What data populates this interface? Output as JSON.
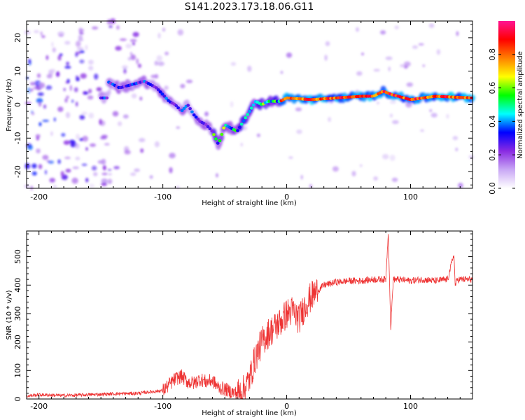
{
  "title": "S141.2023.173.18.06.G11",
  "chart_data": [
    {
      "type": "heatmap",
      "xlabel": "Height of straight line (km)",
      "ylabel": "Frequency (Hz)",
      "xlim": [
        -210,
        150
      ],
      "ylim": [
        -25,
        25
      ],
      "x_ticks": [
        -200,
        -100,
        0,
        100
      ],
      "y_ticks": [
        -20,
        -10,
        0,
        10,
        20
      ],
      "colorbar": {
        "label": "Normalized spectral amplitude",
        "range": [
          0,
          1
        ],
        "ticks": [
          0.0,
          0.2,
          0.4,
          0.6,
          0.8
        ],
        "tick_labels": [
          "0.0",
          "0.2",
          "0.4",
          "0.6",
          "0.8"
        ],
        "colormap": [
          "#ffffff",
          "#c9a8f5",
          "#8a2be2",
          "#0000ff",
          "#00ffff",
          "#00ff00",
          "#ffff00",
          "#ff8000",
          "#ff0000",
          "#ff1493"
        ]
      },
      "ridge": [
        {
          "x": -145,
          "y": 7
        },
        {
          "x": -135,
          "y": 5
        },
        {
          "x": -125,
          "y": 6
        },
        {
          "x": -115,
          "y": 7
        },
        {
          "x": -105,
          "y": 5
        },
        {
          "x": -95,
          "y": 1
        },
        {
          "x": -90,
          "y": 0
        },
        {
          "x": -85,
          "y": -2
        },
        {
          "x": -80,
          "y": 0
        },
        {
          "x": -75,
          "y": -3
        },
        {
          "x": -70,
          "y": -5
        },
        {
          "x": -65,
          "y": -6
        },
        {
          "x": -60,
          "y": -8
        },
        {
          "x": -55,
          "y": -12
        },
        {
          "x": -50,
          "y": -6
        },
        {
          "x": -45,
          "y": -7
        },
        {
          "x": -40,
          "y": -8
        },
        {
          "x": -35,
          "y": -5
        },
        {
          "x": -30,
          "y": -2
        },
        {
          "x": -25,
          "y": 1
        },
        {
          "x": -20,
          "y": 0
        },
        {
          "x": -15,
          "y": 1
        },
        {
          "x": -10,
          "y": 1
        },
        {
          "x": -5,
          "y": 1
        },
        {
          "x": 0,
          "y": 2
        },
        {
          "x": 20,
          "y": 1.5
        },
        {
          "x": 40,
          "y": 2
        },
        {
          "x": 60,
          "y": 2.5
        },
        {
          "x": 70,
          "y": 2.5
        },
        {
          "x": 78,
          "y": 4
        },
        {
          "x": 85,
          "y": 3
        },
        {
          "x": 100,
          "y": 1.5
        },
        {
          "x": 120,
          "y": 2.5
        },
        {
          "x": 150,
          "y": 2
        }
      ]
    },
    {
      "type": "line",
      "xlabel": "Height of straight line (km)",
      "ylabel": "SNR (10 * v/v)",
      "xlim": [
        -210,
        150
      ],
      "ylim": [
        0,
        590
      ],
      "x_ticks": [
        -200,
        -100,
        0,
        100
      ],
      "y_ticks": [
        0,
        100,
        200,
        300,
        400,
        500
      ],
      "series": [
        {
          "color": "#ee3333",
          "x": [
            -210,
            -200,
            -180,
            -160,
            -140,
            -120,
            -110,
            -100,
            -95,
            -90,
            -85,
            -80,
            -75,
            -70,
            -65,
            -60,
            -55,
            -50,
            -45,
            -40,
            -35,
            -30,
            -25,
            -20,
            -15,
            -10,
            -5,
            0,
            5,
            10,
            15,
            20,
            25,
            30,
            40,
            50,
            60,
            70,
            80,
            82,
            84,
            86,
            90,
            100,
            110,
            120,
            130,
            135,
            136,
            138,
            140,
            150
          ],
          "y": [
            10,
            15,
            12,
            15,
            18,
            20,
            25,
            30,
            50,
            70,
            80,
            60,
            55,
            70,
            60,
            65,
            40,
            35,
            25,
            20,
            30,
            70,
            150,
            200,
            230,
            250,
            270,
            300,
            310,
            280,
            330,
            360,
            380,
            400,
            410,
            415,
            415,
            420,
            420,
            590,
            250,
            420,
            420,
            415,
            420,
            415,
            420,
            510,
            400,
            420,
            420,
            420
          ]
        }
      ]
    }
  ]
}
